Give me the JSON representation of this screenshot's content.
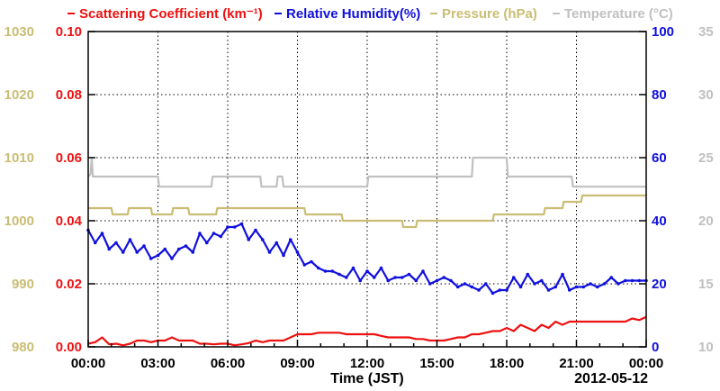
{
  "chart_data": {
    "type": "line",
    "legend": [
      {
        "text": "Scattering Coefficient (km⁻¹)",
        "color": "#ee1111"
      },
      {
        "text": "Relative Humidity(%)",
        "color": "#1010dd"
      },
      {
        "text": "Pressure (hPa)",
        "color": "#c9bd73"
      },
      {
        "text": "Temperature (°C)",
        "color": "#c0c0c0"
      }
    ],
    "legend_placement": "top",
    "grid": true,
    "xlabel": "Time (JST)",
    "date_label": "2012-05-12",
    "x_ticks": [
      "00:00",
      "03:00",
      "06:00",
      "09:00",
      "12:00",
      "15:00",
      "18:00",
      "21:00",
      "00:00"
    ],
    "x_range_hours": [
      0,
      24
    ],
    "axes": {
      "scattering": {
        "side": "left-inner",
        "range": [
          0,
          0.1
        ],
        "ticks": [
          "0.00",
          "0.02",
          "0.04",
          "0.06",
          "0.08",
          "0.10"
        ],
        "color": "#ee1111"
      },
      "pressure": {
        "side": "left-outer",
        "range": [
          980,
          1030
        ],
        "ticks": [
          "980",
          "990",
          "1000",
          "1010",
          "1020",
          "1030"
        ],
        "color": "#c9bd73"
      },
      "humidity": {
        "side": "right-inner",
        "range": [
          0,
          100
        ],
        "ticks": [
          "0",
          "20",
          "40",
          "60",
          "80",
          "100"
        ],
        "color": "#1010dd"
      },
      "temperature": {
        "side": "right-outer",
        "range": [
          10,
          35
        ],
        "ticks": [
          "10",
          "15",
          "20",
          "25",
          "30",
          "35"
        ],
        "color": "#c0c0c0"
      }
    },
    "series": [
      {
        "name": "Temperature (°C)",
        "axis": "temperature",
        "color": "#c0c0c0",
        "x": [
          0,
          0.1,
          0.15,
          0.2,
          3,
          3.05,
          4.5,
          4.55,
          5.3,
          5.35,
          7.4,
          7.45,
          8.1,
          8.15,
          8.35,
          8.4,
          8.7,
          8.75,
          12,
          12.05,
          16.5,
          16.55,
          18,
          18.05,
          20.8,
          20.85,
          21.3,
          21.35,
          24
        ],
        "y": [
          23.5,
          23.7,
          25,
          23.5,
          23.5,
          22.7,
          22.7,
          22.7,
          22.7,
          23.5,
          23.5,
          22.7,
          22.7,
          23.5,
          23.5,
          22.7,
          22.7,
          22.7,
          22.7,
          23.5,
          23.5,
          25,
          25,
          23.5,
          23.5,
          22.7,
          22.7,
          22.7,
          22.7
        ]
      },
      {
        "name": "Pressure (hPa)",
        "axis": "pressure",
        "color": "#c9bd73",
        "x": [
          0,
          1,
          1.05,
          1.7,
          1.75,
          2.7,
          2.75,
          3.6,
          3.65,
          4.3,
          4.35,
          5.5,
          5.55,
          6.3,
          6.35,
          7.5,
          7.55,
          9.3,
          9.35,
          10.9,
          10.95,
          13.5,
          13.55,
          14.1,
          14.15,
          14.4,
          14.45,
          17.4,
          17.45,
          18.7,
          18.75,
          19.6,
          19.65,
          20.4,
          20.45,
          21.2,
          21.25,
          24
        ],
        "y": [
          1002,
          1002,
          1001,
          1001,
          1002,
          1002,
          1001,
          1001,
          1002,
          1002,
          1001,
          1001,
          1002,
          1002,
          1002,
          1002,
          1002,
          1002,
          1001,
          1001,
          1000,
          1000,
          999,
          999,
          1000,
          1000,
          1000,
          1000,
          1001,
          1001,
          1001,
          1001,
          1002,
          1002,
          1003,
          1003,
          1004,
          1004
        ]
      },
      {
        "name": "Relative Humidity(%)",
        "axis": "humidity",
        "color": "#1010dd",
        "x": [
          0,
          0.3,
          0.6,
          0.9,
          1.2,
          1.5,
          1.8,
          2.1,
          2.4,
          2.7,
          3.0,
          3.3,
          3.6,
          3.9,
          4.2,
          4.5,
          4.8,
          5.1,
          5.4,
          5.7,
          6.0,
          6.3,
          6.6,
          6.9,
          7.2,
          7.5,
          7.8,
          8.1,
          8.4,
          8.7,
          9.0,
          9.3,
          9.6,
          9.9,
          10.2,
          10.5,
          10.8,
          11.1,
          11.4,
          11.7,
          12.0,
          12.3,
          12.6,
          12.9,
          13.2,
          13.5,
          13.8,
          14.1,
          14.4,
          14.7,
          15.0,
          15.3,
          15.6,
          15.9,
          16.2,
          16.5,
          16.8,
          17.1,
          17.4,
          17.7,
          18.0,
          18.3,
          18.6,
          18.9,
          19.2,
          19.5,
          19.8,
          20.1,
          20.4,
          20.7,
          21.0,
          21.3,
          21.6,
          21.9,
          22.2,
          22.5,
          22.8,
          23.1,
          23.4,
          23.7,
          24.0
        ],
        "y": [
          37,
          33,
          36,
          31,
          33,
          30,
          34,
          30,
          32,
          28,
          29,
          31,
          28,
          31,
          32,
          30,
          36,
          33,
          36,
          35,
          38,
          38,
          39,
          34,
          37,
          34,
          30,
          33,
          29,
          34,
          30,
          26,
          27,
          25,
          24,
          24,
          23,
          22,
          25,
          21,
          24,
          22,
          25,
          21,
          22,
          22,
          23,
          21,
          24,
          20,
          21,
          22,
          21,
          19,
          20,
          19,
          18,
          20,
          17,
          18,
          18,
          22,
          19,
          23,
          20,
          21,
          18,
          19,
          23,
          18,
          19,
          19,
          20,
          19,
          20,
          22,
          20,
          21,
          21,
          21,
          21
        ]
      },
      {
        "name": "Scattering Coefficient (km⁻¹)",
        "axis": "scattering",
        "color": "#ee1111",
        "x": [
          0,
          0.3,
          0.6,
          0.9,
          1.2,
          1.5,
          1.8,
          2.1,
          2.4,
          2.7,
          3.0,
          3.3,
          3.6,
          3.9,
          4.2,
          4.5,
          4.8,
          5.1,
          5.4,
          5.7,
          6.0,
          6.3,
          6.6,
          6.9,
          7.2,
          7.5,
          7.8,
          8.1,
          8.4,
          8.7,
          9.0,
          9.3,
          9.6,
          9.9,
          10.2,
          10.5,
          10.8,
          11.1,
          11.4,
          11.7,
          12.0,
          12.3,
          12.6,
          12.9,
          13.2,
          13.5,
          13.8,
          14.1,
          14.4,
          14.7,
          15.0,
          15.3,
          15.6,
          15.9,
          16.2,
          16.5,
          16.8,
          17.1,
          17.4,
          17.7,
          18.0,
          18.3,
          18.6,
          18.9,
          19.2,
          19.5,
          19.8,
          20.1,
          20.4,
          20.7,
          21.0,
          21.3,
          21.6,
          21.9,
          22.2,
          22.5,
          22.8,
          23.1,
          23.4,
          23.7,
          24.0
        ],
        "y": [
          0.001,
          0.0015,
          0.003,
          0.0008,
          0.001,
          0.0005,
          0.001,
          0.002,
          0.002,
          0.0015,
          0.002,
          0.002,
          0.003,
          0.002,
          0.002,
          0.002,
          0.001,
          0.001,
          0.0008,
          0.001,
          0.001,
          0.0005,
          0.0008,
          0.0012,
          0.002,
          0.0015,
          0.002,
          0.002,
          0.002,
          0.003,
          0.004,
          0.004,
          0.004,
          0.0045,
          0.0045,
          0.0045,
          0.0045,
          0.004,
          0.004,
          0.004,
          0.004,
          0.004,
          0.0035,
          0.003,
          0.003,
          0.003,
          0.003,
          0.0025,
          0.0025,
          0.002,
          0.002,
          0.002,
          0.0025,
          0.003,
          0.003,
          0.004,
          0.004,
          0.0045,
          0.005,
          0.005,
          0.006,
          0.005,
          0.007,
          0.006,
          0.005,
          0.007,
          0.006,
          0.008,
          0.007,
          0.008,
          0.008,
          0.008,
          0.008,
          0.008,
          0.008,
          0.008,
          0.008,
          0.008,
          0.009,
          0.0085,
          0.0095
        ]
      }
    ]
  }
}
